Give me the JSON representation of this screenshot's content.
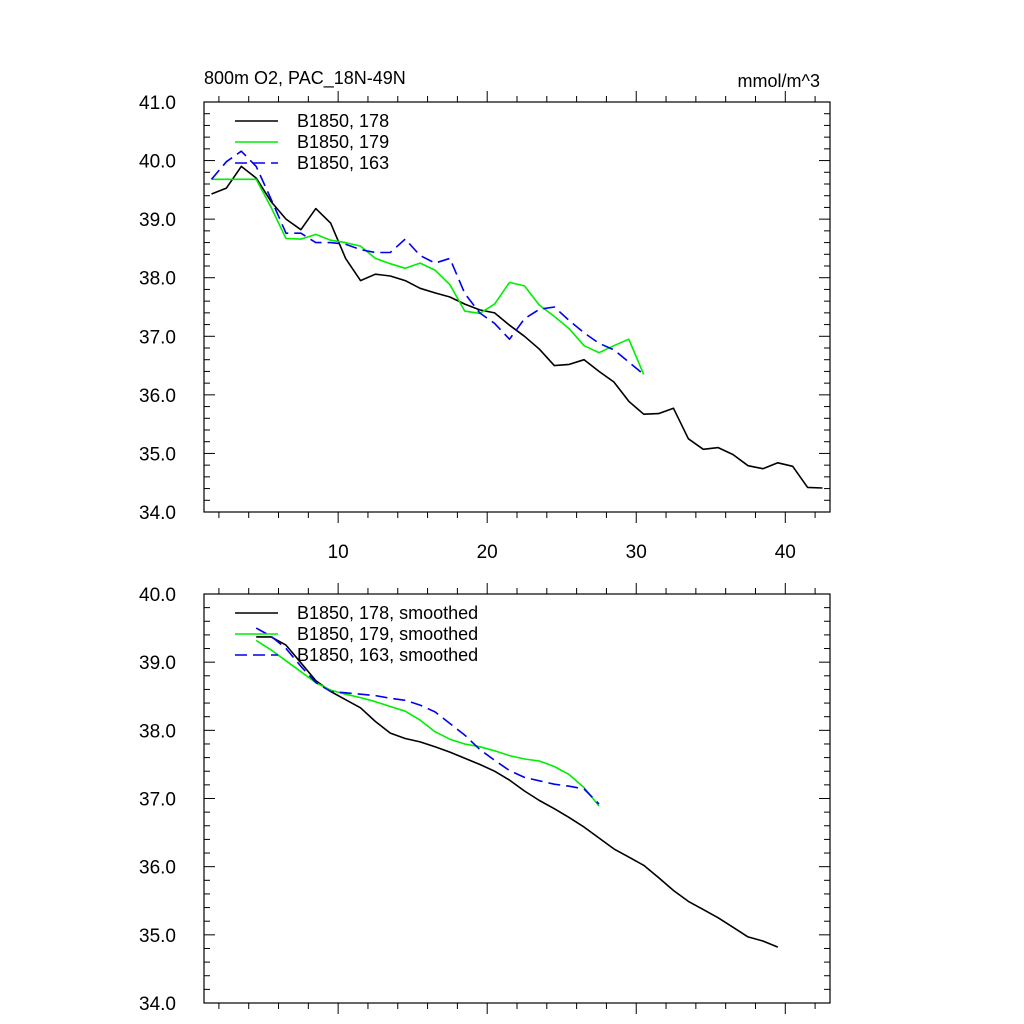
{
  "chart_data": [
    {
      "type": "line",
      "title": "800m O2, PAC_18N-49N",
      "units": "mmol/m^3",
      "xlim": [
        1,
        43
      ],
      "ylim": [
        34.0,
        41.0
      ],
      "xticks": [
        10,
        20,
        30,
        40
      ],
      "xtick_labels": [
        "10",
        "20",
        "30",
        "40"
      ],
      "yticks": [
        34.0,
        35.0,
        36.0,
        37.0,
        38.0,
        39.0,
        40.0,
        41.0
      ],
      "ytick_labels": [
        "34.0",
        "35.0",
        "36.0",
        "37.0",
        "38.0",
        "39.0",
        "40.0",
        "41.0"
      ],
      "legend_position": "top-left",
      "series": [
        {
          "name": "B1850, 178",
          "color": "#000000",
          "dash": "solid",
          "x": [
            1.5,
            2.5,
            3.5,
            4.5,
            5.5,
            6.5,
            7.5,
            8.5,
            9.5,
            10.5,
            11.5,
            12.5,
            13.5,
            14.5,
            15.5,
            16.5,
            17.5,
            18.5,
            19.5,
            20.5,
            21.5,
            22.5,
            23.5,
            24.5,
            25.5,
            26.5,
            27.5,
            28.5,
            29.5,
            30.5,
            31.5,
            32.5,
            33.5,
            34.5,
            35.5,
            36.5,
            37.5,
            38.5,
            39.5,
            40.5,
            41.5,
            42.5
          ],
          "y": [
            39.43,
            39.53,
            39.9,
            39.7,
            39.3,
            39.0,
            38.82,
            39.18,
            38.93,
            38.33,
            37.95,
            38.06,
            38.03,
            37.95,
            37.82,
            37.74,
            37.67,
            37.55,
            37.45,
            37.4,
            37.19,
            37.0,
            36.78,
            36.5,
            36.52,
            36.6,
            36.4,
            36.22,
            35.89,
            35.67,
            35.68,
            35.77,
            35.25,
            35.07,
            35.1,
            34.98,
            34.79,
            34.74,
            34.84,
            34.78,
            34.42,
            34.41
          ]
        },
        {
          "name": "B1850, 179",
          "color": "#00ee00",
          "dash": "solid",
          "x": [
            1.5,
            2.5,
            3.5,
            4.5,
            5.5,
            6.5,
            7.5,
            8.5,
            9.5,
            10.5,
            11.5,
            12.5,
            13.5,
            14.5,
            15.5,
            16.5,
            17.5,
            18.5,
            19.5,
            20.5,
            21.5,
            22.5,
            23.5,
            24.5,
            25.5,
            26.5,
            27.5,
            28.5,
            29.5,
            30.5
          ],
          "y": [
            39.68,
            39.68,
            39.68,
            39.68,
            39.2,
            38.67,
            38.66,
            38.74,
            38.64,
            38.6,
            38.54,
            38.33,
            38.24,
            38.16,
            38.25,
            38.13,
            37.88,
            37.43,
            37.39,
            37.55,
            37.92,
            37.86,
            37.53,
            37.34,
            37.13,
            36.84,
            36.72,
            36.84,
            36.95,
            36.35
          ]
        },
        {
          "name": "B1850, 163",
          "color": "#0000ee",
          "dash": "dashed",
          "x": [
            1.5,
            2.5,
            3.5,
            4.5,
            5.5,
            6.5,
            7.5,
            8.5,
            9.5,
            10.5,
            11.5,
            12.5,
            13.5,
            14.5,
            15.5,
            16.5,
            17.5,
            18.5,
            19.5,
            20.5,
            21.5,
            22.5,
            23.5,
            24.5,
            25.5,
            26.5,
            27.5,
            28.5,
            29.5,
            30.5
          ],
          "y": [
            39.68,
            39.98,
            40.16,
            39.9,
            39.34,
            38.76,
            38.76,
            38.6,
            38.6,
            38.57,
            38.48,
            38.43,
            38.43,
            38.66,
            38.38,
            38.25,
            38.33,
            37.73,
            37.4,
            37.22,
            36.95,
            37.3,
            37.46,
            37.5,
            37.27,
            37.06,
            36.88,
            36.77,
            36.56,
            36.35
          ]
        }
      ]
    },
    {
      "type": "line",
      "xlim": [
        1,
        43
      ],
      "ylim": [
        34.0,
        40.0
      ],
      "xticks": [
        10,
        20,
        30,
        40
      ],
      "yticks": [
        34.0,
        35.0,
        36.0,
        37.0,
        38.0,
        39.0,
        40.0
      ],
      "ytick_labels": [
        "34.0",
        "35.0",
        "36.0",
        "37.0",
        "38.0",
        "39.0",
        "40.0"
      ],
      "legend_position": "top-left",
      "series": [
        {
          "name": "B1850, 178, smoothed",
          "color": "#000000",
          "dash": "solid",
          "x": [
            4.5,
            5.5,
            6.5,
            7.5,
            8.5,
            9.5,
            10.5,
            11.5,
            12.5,
            13.5,
            14.5,
            15.5,
            16.5,
            17.5,
            18.5,
            19.5,
            20.5,
            21.5,
            22.5,
            23.5,
            24.5,
            25.5,
            26.5,
            27.5,
            28.5,
            29.5,
            30.5,
            31.5,
            32.5,
            33.5,
            34.5,
            35.5,
            36.5,
            37.5,
            38.5,
            39.5
          ],
          "y": [
            39.37,
            39.37,
            39.25,
            38.99,
            38.73,
            38.57,
            38.45,
            38.33,
            38.13,
            37.96,
            37.88,
            37.83,
            37.76,
            37.68,
            37.59,
            37.5,
            37.4,
            37.27,
            37.11,
            36.97,
            36.85,
            36.72,
            36.58,
            36.42,
            36.26,
            36.14,
            36.02,
            35.84,
            35.65,
            35.49,
            35.37,
            35.25,
            35.11,
            34.97,
            34.91,
            34.82
          ]
        },
        {
          "name": "B1850, 179, smoothed",
          "color": "#00ee00",
          "dash": "solid",
          "x": [
            4.5,
            5.5,
            6.5,
            7.5,
            8.5,
            9.5,
            10.5,
            11.5,
            12.5,
            13.5,
            14.5,
            15.5,
            16.5,
            17.5,
            18.5,
            19.5,
            20.5,
            21.5,
            22.5,
            23.5,
            24.5,
            25.5,
            26.5,
            27.5
          ],
          "y": [
            39.32,
            39.18,
            39.02,
            38.86,
            38.7,
            38.59,
            38.53,
            38.48,
            38.42,
            38.35,
            38.28,
            38.15,
            37.98,
            37.87,
            37.8,
            37.76,
            37.7,
            37.63,
            37.58,
            37.55,
            37.47,
            37.35,
            37.16,
            36.89
          ]
        },
        {
          "name": "B1850, 163, smoothed",
          "color": "#0000ee",
          "dash": "dashed",
          "x": [
            4.5,
            5.5,
            6.5,
            7.5,
            8.5,
            9.5,
            10.5,
            11.5,
            12.5,
            13.5,
            14.5,
            15.5,
            16.5,
            17.5,
            18.5,
            19.5,
            20.5,
            21.5,
            22.5,
            23.5,
            24.5,
            25.5,
            26.5,
            27.5
          ],
          "y": [
            39.5,
            39.38,
            39.2,
            38.94,
            38.7,
            38.57,
            38.55,
            38.53,
            38.51,
            38.47,
            38.44,
            38.37,
            38.27,
            38.1,
            37.93,
            37.72,
            37.56,
            37.41,
            37.31,
            37.26,
            37.21,
            37.18,
            37.14,
            36.92
          ]
        }
      ]
    }
  ]
}
